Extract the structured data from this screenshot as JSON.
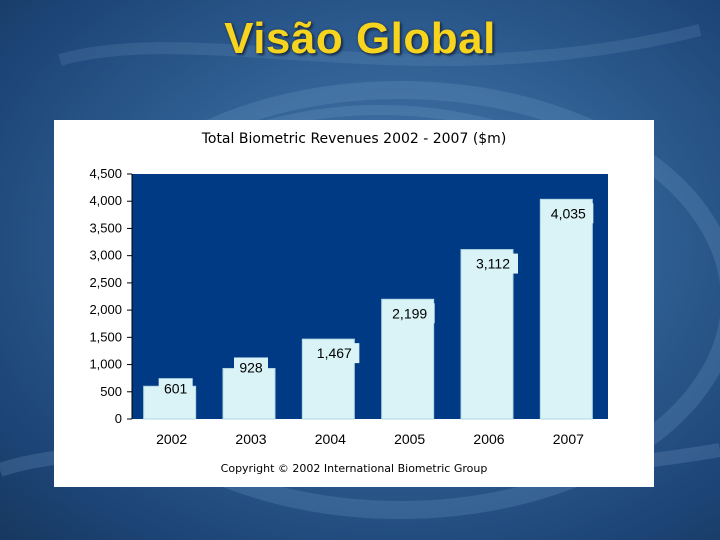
{
  "slide": {
    "title": "Visão Global"
  },
  "colors": {
    "plot_bg": "#003a85",
    "bar_fill": "#d9f3f7",
    "bar_stroke": "#b0d7e0",
    "title_yellow": "#f7d51f"
  },
  "chart_data": {
    "type": "bar",
    "title": "Total Biometric Revenues 2002 - 2007 ($m)",
    "categories": [
      "2002",
      "2003",
      "2004",
      "2005",
      "2006",
      "2007"
    ],
    "values": [
      601,
      928,
      1467,
      2199,
      3112,
      4035
    ],
    "value_labels": [
      "601",
      "928",
      "1,467",
      "2,199",
      "3,112",
      "4,035"
    ],
    "ylim": [
      0,
      4500
    ],
    "yticks": [
      0,
      500,
      1000,
      1500,
      2000,
      2500,
      3000,
      3500,
      4000,
      4500
    ],
    "ytick_labels": [
      "0",
      "500",
      "1,000",
      "1,500",
      "2,000",
      "2,500",
      "3,000",
      "3,500",
      "4,000",
      "4,500"
    ],
    "grid": false,
    "xlabel": "",
    "ylabel": "",
    "footnote": "Copyright © 2002 International Biometric Group"
  }
}
